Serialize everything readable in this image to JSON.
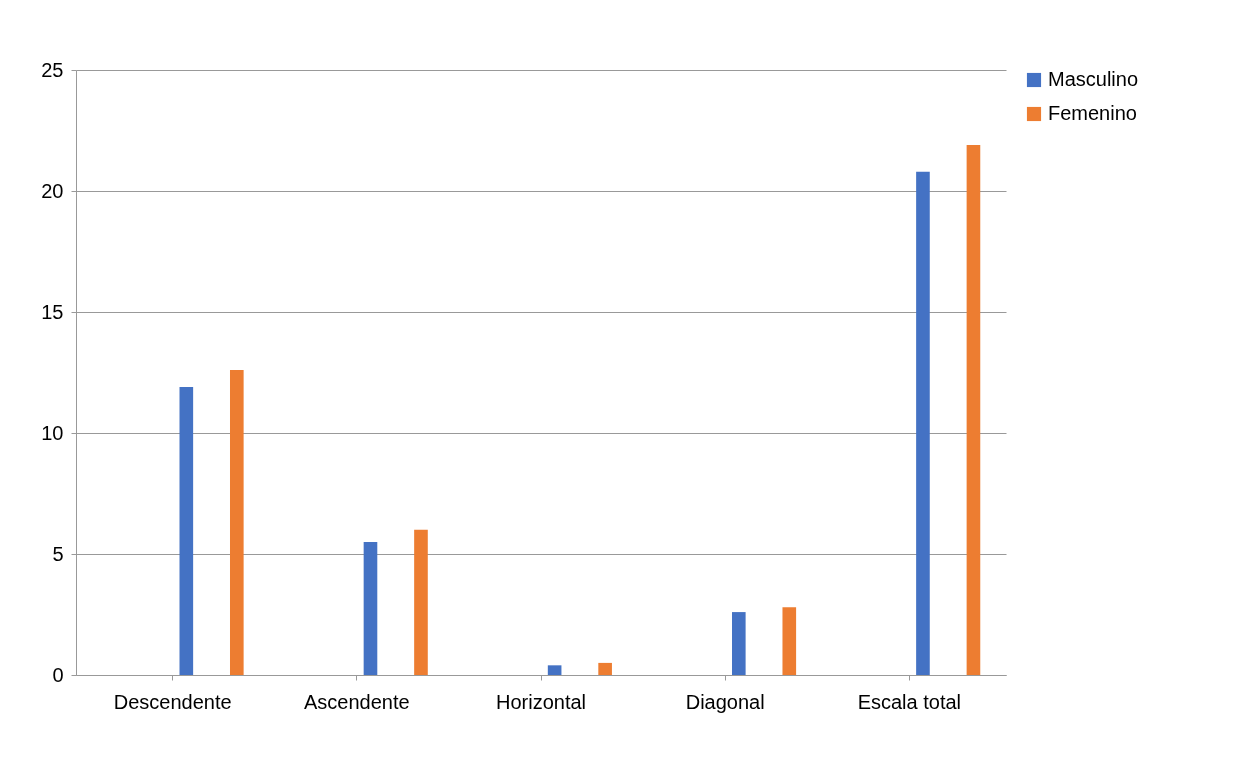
{
  "chart_data": {
    "type": "bar",
    "categories": [
      "Descendente",
      "Ascendente",
      "Horizontal",
      "Diagonal",
      "Escala total"
    ],
    "series": [
      {
        "name": "Masculino",
        "color": "#4472c4",
        "values": [
          11.9,
          5.5,
          0.4,
          2.6,
          20.8
        ]
      },
      {
        "name": "Femenino",
        "color": "#ed7d31",
        "values": [
          12.6,
          6.0,
          0.5,
          2.8,
          21.9
        ]
      }
    ],
    "ylim": [
      0,
      25
    ],
    "yticks": [
      0,
      5,
      10,
      15,
      20,
      25
    ],
    "grid": "y",
    "legend": "right"
  }
}
